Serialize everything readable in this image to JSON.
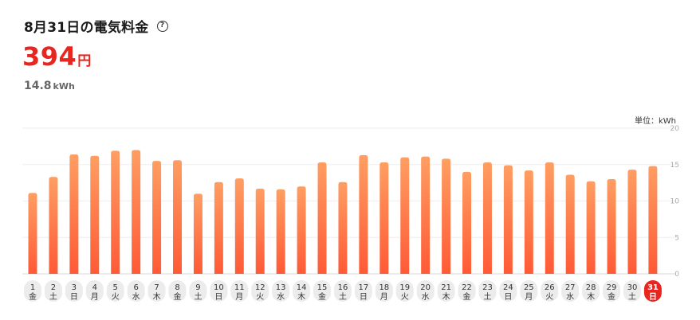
{
  "header": {
    "title": "8月31日の電気料金",
    "help_icon": "help-circle-icon",
    "price_value": "394",
    "price_unit": "円",
    "usage_value": "14.8",
    "usage_unit": "kWh"
  },
  "colors": {
    "accent_red": "#e8251f",
    "bar_top": "#ff9e62",
    "bar_bottom": "#ff5a36",
    "selected_day_bg": "#e8251f",
    "day_chip_bg": "#ececec"
  },
  "chart_data": {
    "type": "bar",
    "unit_label": "単位：kWh",
    "ylim": [
      0,
      20
    ],
    "yticks": [
      0,
      5,
      10,
      15,
      20
    ],
    "grid": true,
    "selected_index": 30,
    "categories": [
      {
        "day": "1",
        "weekday": "金"
      },
      {
        "day": "2",
        "weekday": "土"
      },
      {
        "day": "3",
        "weekday": "日"
      },
      {
        "day": "4",
        "weekday": "月"
      },
      {
        "day": "5",
        "weekday": "火"
      },
      {
        "day": "6",
        "weekday": "水"
      },
      {
        "day": "7",
        "weekday": "木"
      },
      {
        "day": "8",
        "weekday": "金"
      },
      {
        "day": "9",
        "weekday": "土"
      },
      {
        "day": "10",
        "weekday": "日"
      },
      {
        "day": "11",
        "weekday": "月"
      },
      {
        "day": "12",
        "weekday": "火"
      },
      {
        "day": "13",
        "weekday": "水"
      },
      {
        "day": "14",
        "weekday": "木"
      },
      {
        "day": "15",
        "weekday": "金"
      },
      {
        "day": "16",
        "weekday": "土"
      },
      {
        "day": "17",
        "weekday": "日"
      },
      {
        "day": "18",
        "weekday": "月"
      },
      {
        "day": "19",
        "weekday": "火"
      },
      {
        "day": "20",
        "weekday": "水"
      },
      {
        "day": "21",
        "weekday": "木"
      },
      {
        "day": "22",
        "weekday": "金"
      },
      {
        "day": "23",
        "weekday": "土"
      },
      {
        "day": "24",
        "weekday": "日"
      },
      {
        "day": "25",
        "weekday": "月"
      },
      {
        "day": "26",
        "weekday": "火"
      },
      {
        "day": "27",
        "weekday": "水"
      },
      {
        "day": "28",
        "weekday": "木"
      },
      {
        "day": "29",
        "weekday": "金"
      },
      {
        "day": "30",
        "weekday": "土"
      },
      {
        "day": "31",
        "weekday": "日"
      }
    ],
    "values": [
      11.1,
      13.3,
      16.4,
      16.2,
      16.9,
      17.0,
      15.5,
      15.6,
      11.0,
      12.6,
      13.1,
      11.7,
      11.6,
      12.0,
      15.3,
      12.6,
      16.3,
      15.3,
      16.0,
      16.1,
      15.8,
      14.0,
      15.3,
      14.9,
      14.2,
      15.3,
      13.6,
      12.7,
      13.0,
      14.3,
      14.8
    ]
  }
}
